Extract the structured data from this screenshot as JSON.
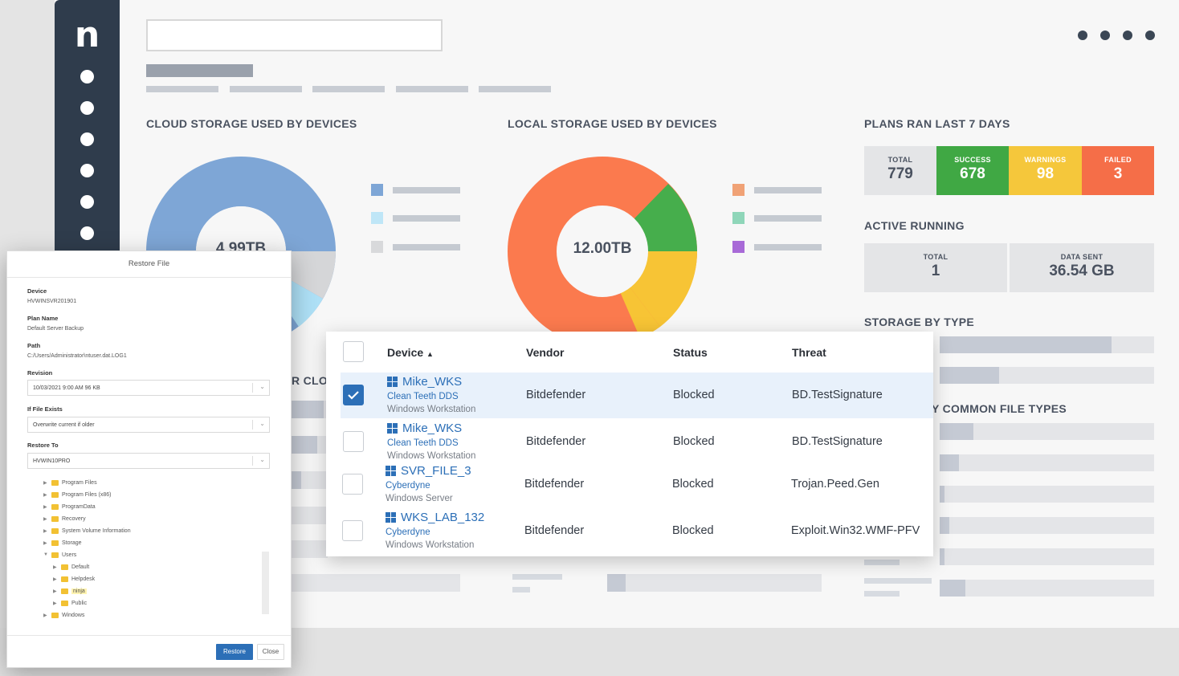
{
  "app": {
    "logo": "n"
  },
  "sections": {
    "cloud": "CLOUD STORAGE USED BY DEVICES",
    "cloud_partial": "R CLO",
    "local": "LOCAL STORAGE USED BY DEVICES",
    "plans": "PLANS RAN LAST 7 DAYS",
    "active": "ACTIVE RUNNING",
    "storage_type": "STORAGE BY TYPE",
    "file_types": "Y COMMON FILE TYPES"
  },
  "cloud_donut": {
    "center_label": "4.99TB",
    "colors": {
      "primary": "#7ea6d6",
      "secondary": "#aee0f6",
      "tertiary": "#d5d6d8"
    }
  },
  "local_donut": {
    "center_label": "12.00TB",
    "colors": {
      "orange": "#fb7a4e",
      "green": "#46ae4c",
      "yellow": "#f7c435"
    }
  },
  "legend_colors": {
    "cloud": [
      "#7ea6d6",
      "#bfe6f7",
      "#d8d9db"
    ],
    "local": [
      "#f0a276",
      "#8fd6b9",
      "#a86ad7"
    ]
  },
  "plans": {
    "total_label": "TOTAL",
    "total_value": "779",
    "success_label": "SUCCESS",
    "success_value": "678",
    "warnings_label": "WARNINGS",
    "warnings_value": "98",
    "failed_label": "FAILED",
    "failed_value": "3",
    "colors": {
      "total": "#e4e5e7",
      "success": "#40a844",
      "warnings": "#f5c73b",
      "failed": "#f56e48"
    }
  },
  "active": {
    "total_label": "TOTAL",
    "total_value": "1",
    "data_label": "DATA SENT",
    "data_value": "36.54 GB"
  },
  "threat_table": {
    "columns": {
      "device": "Device",
      "sort_indicator": "▲",
      "vendor": "Vendor",
      "status": "Status",
      "threat": "Threat"
    },
    "rows": [
      {
        "name": "Mike_WKS",
        "org": "Clean Teeth DDS",
        "type": "Windows Workstation",
        "vendor": "Bitdefender",
        "status": "Blocked",
        "threat": "BD.TestSignature",
        "checked": true
      },
      {
        "name": "Mike_WKS",
        "org": "Clean Teeth DDS",
        "type": "Windows Workstation",
        "vendor": "Bitdefender",
        "status": "Blocked",
        "threat": "BD.TestSignature",
        "checked": false
      },
      {
        "name": "SVR_FILE_3",
        "org": "Cyberdyne",
        "type": "Windows Server",
        "vendor": "Bitdefender",
        "status": "Blocked",
        "threat": "Trojan.Peed.Gen",
        "checked": false
      },
      {
        "name": "WKS_LAB_132",
        "org": "Cyberdyne",
        "type": "Windows Workstation",
        "vendor": "Bitdefender",
        "status": "Blocked",
        "threat": "Exploit.Win32.WMF-PFV",
        "checked": false
      }
    ]
  },
  "restore_dialog": {
    "title": "Restore File",
    "device_label": "Device",
    "device_value": "HVWINSVR201901",
    "plan_label": "Plan Name",
    "plan_value": "Default Server Backup",
    "path_label": "Path",
    "path_value": "C:/Users/Administrator\\ntuser.dat.LOG1",
    "revision_label": "Revision",
    "revision_value": "10/03/2021 9:00 AM 96 KB",
    "if_exists_label": "If File Exists",
    "if_exists_value": "Overwrite current if older",
    "restore_to_label": "Restore To",
    "restore_to_value": "HVWIN10PRO",
    "tree": [
      "Program Files",
      "Program Files (x86)",
      "ProgramData",
      "Recovery",
      "System Volume Information",
      "Storage",
      "Users",
      "Default",
      "Helpdesk",
      "ninja",
      "Public",
      "Windows"
    ],
    "restore_button": "Restore",
    "close_button": "Close"
  }
}
